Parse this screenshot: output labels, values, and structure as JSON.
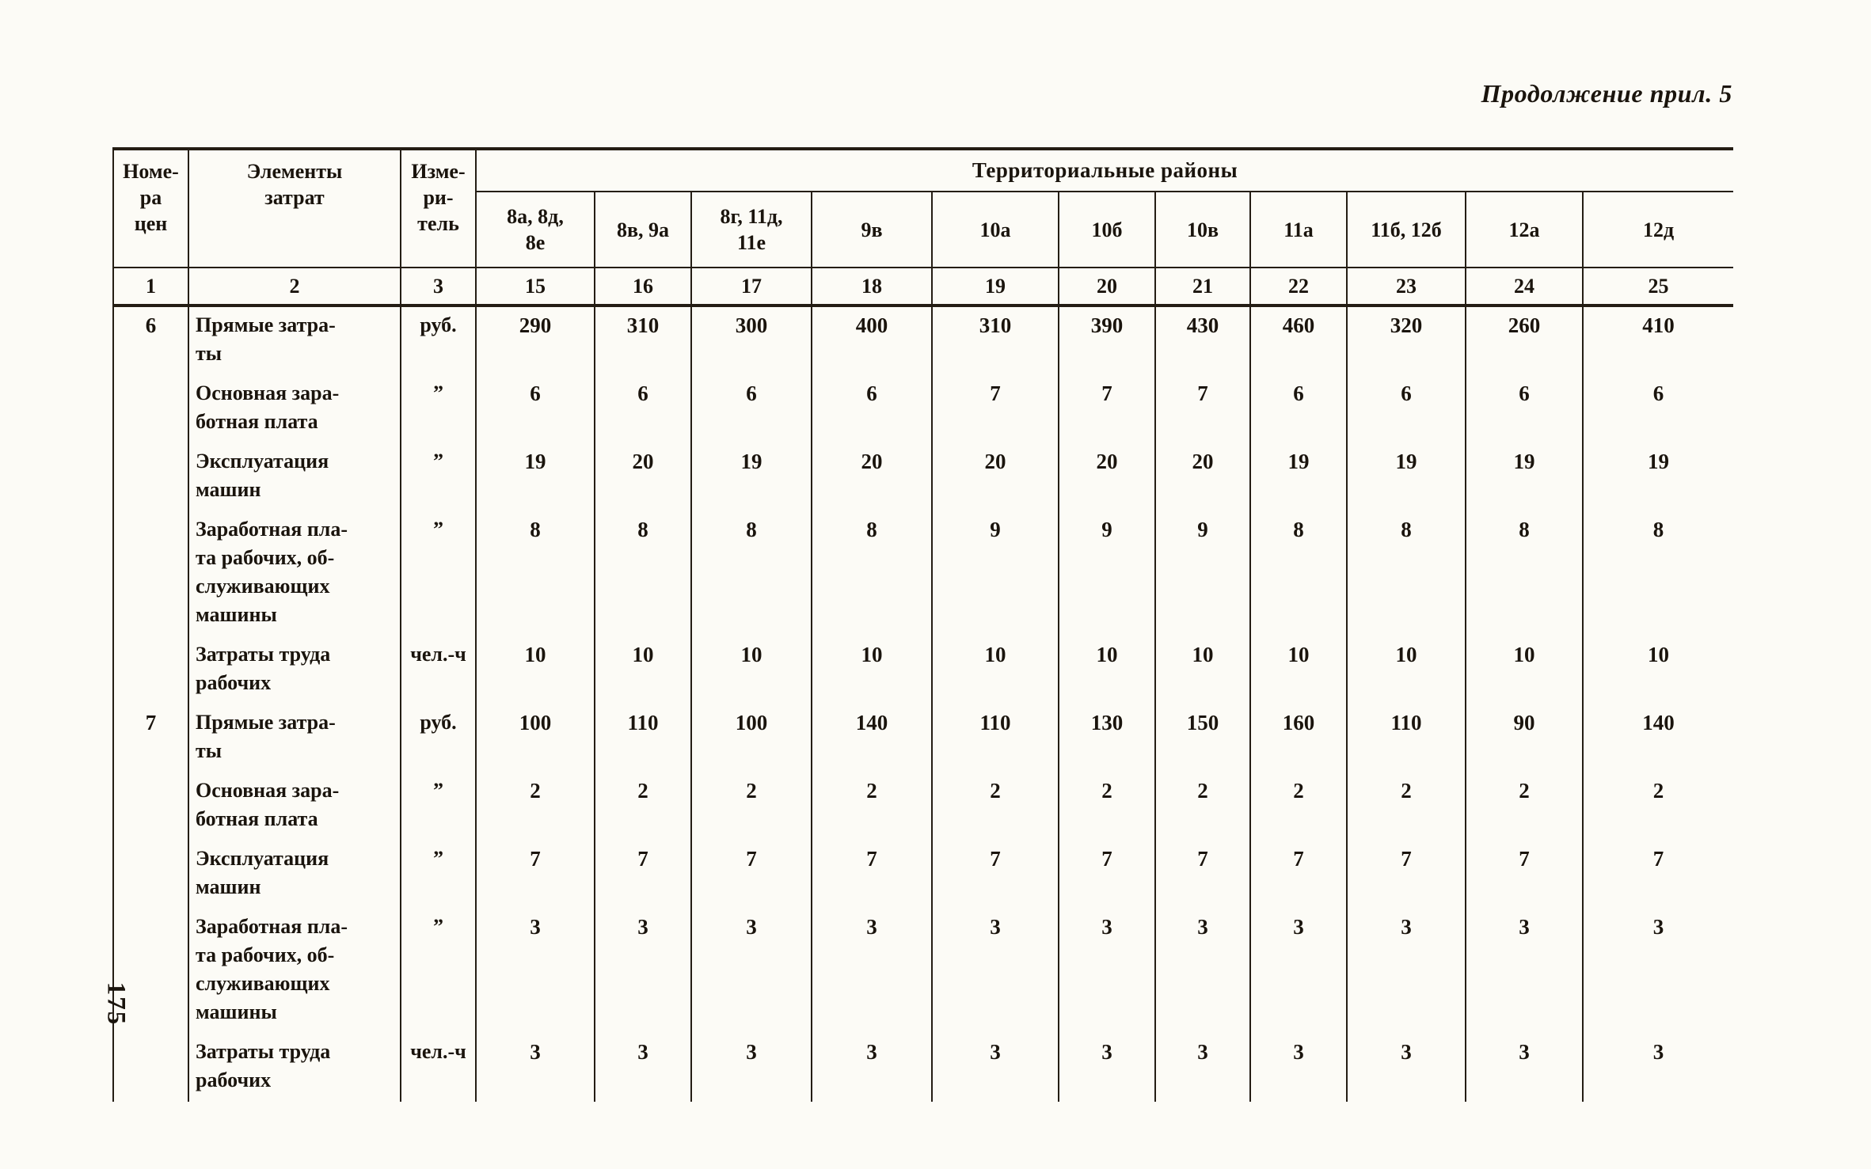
{
  "page": {
    "caption": "Продолжение прил. 5",
    "page_number": "175"
  },
  "table": {
    "header": {
      "col1": "Номе-\nра\nцен",
      "col2": "Элементы\nзатрат",
      "col3": "Изме-\nри-\nтель",
      "districts_title": "Территориальные районы",
      "district_cols": [
        "8а, 8д,\n8е",
        "8в, 9а",
        "8г, 11д,\n11е",
        "9в",
        "10а",
        "10б",
        "10в",
        "11а",
        "11б, 12б",
        "12а",
        "12д"
      ],
      "index_cols": [
        "1",
        "2",
        "3",
        "15",
        "16",
        "17",
        "18",
        "19",
        "20",
        "21",
        "22",
        "23",
        "24",
        "25"
      ]
    },
    "rows": [
      {
        "num": "6",
        "label": "Прямые затра-\nты",
        "unit": "руб.",
        "values": [
          "290",
          "310",
          "300",
          "400",
          "310",
          "390",
          "430",
          "460",
          "320",
          "260",
          "410"
        ]
      },
      {
        "num": "",
        "label": "Основная зара-\nботная плата",
        "unit": "”",
        "values": [
          "6",
          "6",
          "6",
          "6",
          "7",
          "7",
          "7",
          "6",
          "6",
          "6",
          "6"
        ]
      },
      {
        "num": "",
        "label": "Эксплуатация\nмашин",
        "unit": "”",
        "values": [
          "19",
          "20",
          "19",
          "20",
          "20",
          "20",
          "20",
          "19",
          "19",
          "19",
          "19"
        ]
      },
      {
        "num": "",
        "label": "Заработная пла-\nта рабочих, об-\nслуживающих\nмашины",
        "unit": "”",
        "values": [
          "8",
          "8",
          "8",
          "8",
          "9",
          "9",
          "9",
          "8",
          "8",
          "8",
          "8"
        ]
      },
      {
        "num": "",
        "label": "Затраты труда\nрабочих",
        "unit": "чел.-ч",
        "values": [
          "10",
          "10",
          "10",
          "10",
          "10",
          "10",
          "10",
          "10",
          "10",
          "10",
          "10"
        ]
      },
      {
        "num": "7",
        "label": "Прямые затра-\nты",
        "unit": "руб.",
        "values": [
          "100",
          "110",
          "100",
          "140",
          "110",
          "130",
          "150",
          "160",
          "110",
          "90",
          "140"
        ]
      },
      {
        "num": "",
        "label": "Основная зара-\nботная плата",
        "unit": "”",
        "values": [
          "2",
          "2",
          "2",
          "2",
          "2",
          "2",
          "2",
          "2",
          "2",
          "2",
          "2"
        ]
      },
      {
        "num": "",
        "label": "Эксплуатация\nмашин",
        "unit": "”",
        "values": [
          "7",
          "7",
          "7",
          "7",
          "7",
          "7",
          "7",
          "7",
          "7",
          "7",
          "7"
        ]
      },
      {
        "num": "",
        "label": "Заработная пла-\nта рабочих, об-\nслуживающих\nмашины",
        "unit": "”",
        "values": [
          "3",
          "3",
          "3",
          "3",
          "3",
          "3",
          "3",
          "3",
          "3",
          "3",
          "3"
        ]
      },
      {
        "num": "",
        "label": "Затраты труда\nрабочих",
        "unit": "чел.-ч",
        "values": [
          "3",
          "3",
          "3",
          "3",
          "3",
          "3",
          "3",
          "3",
          "3",
          "3",
          "3"
        ]
      }
    ]
  }
}
